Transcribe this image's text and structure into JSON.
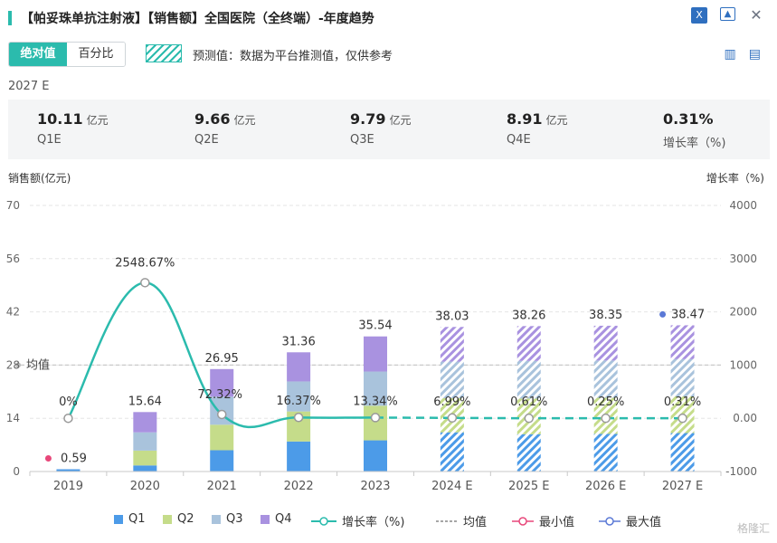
{
  "header": {
    "title": "【帕妥珠单抗注射液】【销售额】全国医院（全终端）-年度趋势"
  },
  "toggle": {
    "absolute_label": "绝对值",
    "percent_label": "百分比"
  },
  "forecast_note": "预测值：数据为平台推测值，仅供参考",
  "summary": {
    "year": "2027 E",
    "cards": [
      {
        "value": "10.11",
        "unit": "亿元",
        "label": "Q1E"
      },
      {
        "value": "9.66",
        "unit": "亿元",
        "label": "Q2E"
      },
      {
        "value": "9.79",
        "unit": "亿元",
        "label": "Q3E"
      },
      {
        "value": "8.91",
        "unit": "亿元",
        "label": "Q4E"
      },
      {
        "value": "0.31%",
        "unit": "",
        "label": "增长率（%)"
      }
    ]
  },
  "chart_data": {
    "type": "bar",
    "stacked": true,
    "ylabel_left": "销售额(亿元)",
    "ylabel_right": "增长率（%)",
    "ylim_left": [
      0,
      70
    ],
    "ylim_right": [
      -1000,
      4000
    ],
    "yticks_left": [
      "0",
      "14",
      "28",
      "42",
      "56",
      "70"
    ],
    "yticks_right": [
      "-1000",
      "0.00",
      "1000",
      "2000",
      "3000",
      "4000"
    ],
    "categories": [
      "2019",
      "2020",
      "2021",
      "2022",
      "2023",
      "2024 E",
      "2025 E",
      "2026 E",
      "2027 E"
    ],
    "forecast_from_index": 5,
    "series": [
      {
        "name": "Q1",
        "color": "#4c9be8",
        "values": [
          0.59,
          1.6,
          5.6,
          7.9,
          8.2,
          10.3,
          9.8,
          9.9,
          10.11
        ]
      },
      {
        "name": "Q2",
        "color": "#c5dc8a",
        "values": [
          0,
          3.9,
          6.7,
          7.9,
          9.1,
          9.0,
          9.4,
          9.5,
          9.66
        ]
      },
      {
        "name": "Q3",
        "color": "#a9c3dc",
        "values": [
          0,
          4.8,
          7.4,
          7.9,
          9.0,
          9.6,
          9.9,
          9.8,
          9.79
        ]
      },
      {
        "name": "Q4",
        "color": "#a992e0",
        "values": [
          0,
          5.34,
          7.25,
          7.66,
          9.24,
          9.13,
          9.16,
          9.15,
          8.91
        ]
      }
    ],
    "totals_labels": [
      "0.59",
      "15.64",
      "26.95",
      "31.36",
      "35.54",
      "38.03",
      "38.26",
      "38.35",
      "38.47"
    ],
    "growth": {
      "name": "增长率（%)",
      "color": "#2bbbad",
      "values": [
        0,
        2548.67,
        72.32,
        16.37,
        13.34,
        6.99,
        0.61,
        0.25,
        0.31
      ],
      "labels": [
        "0%",
        "2548.67%",
        "72.32%",
        "16.37%",
        "13.34%",
        "6.99%",
        "0.61%",
        "0.25%",
        "0.31%"
      ]
    },
    "average": {
      "label": "均值",
      "value": 1000
    },
    "min_index": 0,
    "max_index": 8,
    "min_color": "#e8477a",
    "max_color": "#5b79d6",
    "legend": {
      "q1": "Q1",
      "q2": "Q2",
      "q3": "Q3",
      "q4": "Q4",
      "growth": "增长率（%)",
      "avg": "均值",
      "min": "最小值",
      "max": "最大值"
    },
    "legend_position": "bottom"
  },
  "watermark": "格隆汇"
}
